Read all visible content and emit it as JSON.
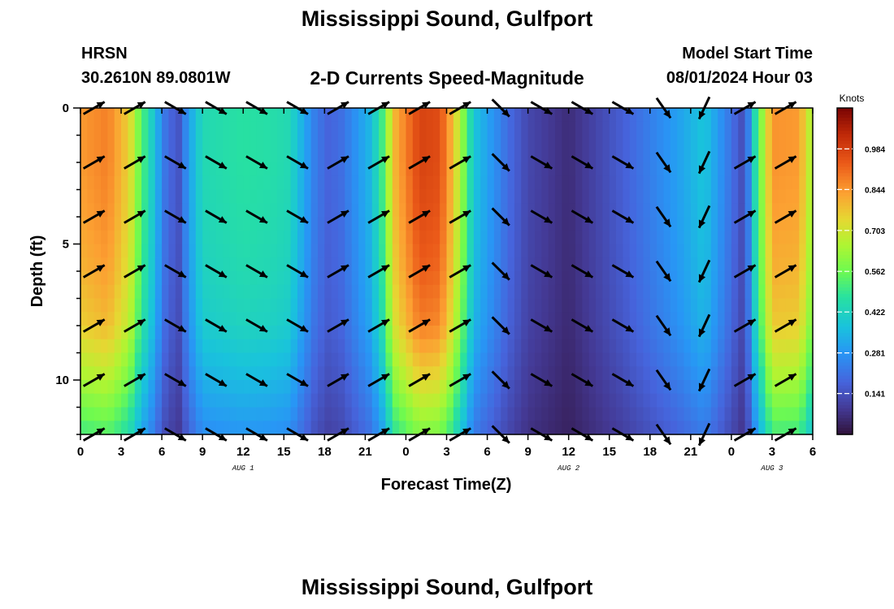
{
  "header": {
    "title": "Mississippi Sound, Gulfport",
    "station": "HRSN",
    "coordinates": "30.2610N  89.0801W",
    "subtitle": "2-D Currents Speed-Magnitude",
    "model_start_label": "Model Start Time",
    "model_start_value": "08/01/2024 Hour 03",
    "footer_title": "Mississippi Sound, Gulfport"
  },
  "chart_data": {
    "type": "heatmap",
    "title": "2-D Currents Speed-Magnitude",
    "xlabel": "Forecast Time(Z)",
    "ylabel": "Depth (ft)",
    "x_tick_labels": [
      "0",
      "3",
      "6",
      "9",
      "12",
      "15",
      "18",
      "21",
      "0",
      "3",
      "6",
      "9",
      "12",
      "15",
      "18",
      "21",
      "0",
      "3",
      "6"
    ],
    "x_date_labels": [
      {
        "label": "AUG 1",
        "hour_index": 12
      },
      {
        "label": "AUG 2",
        "hour_index": 36
      },
      {
        "label": "AUG 3",
        "hour_index": 51
      }
    ],
    "x_range_hours": [
      0,
      54
    ],
    "y_tick_labels": [
      "0",
      "5",
      "10"
    ],
    "y_ticks": [
      0,
      5,
      10
    ],
    "y_range": [
      0,
      12
    ],
    "y_reversed": true,
    "colorbar": {
      "label": "Knots",
      "ticks": [
        "0.984",
        "0.844",
        "0.703",
        "0.562",
        "0.422",
        "0.281",
        "0.141"
      ],
      "range": [
        0,
        1.125
      ]
    },
    "speed_profile_hours": [
      0,
      2,
      3.6,
      4.4,
      5.2,
      6.2,
      7.2,
      8,
      9,
      12,
      14,
      15.4,
      16.2,
      17.2,
      18.2,
      19.2,
      21.4,
      22.5,
      23,
      25,
      26.5,
      27.4,
      28.2,
      29,
      31.5,
      33,
      36,
      40,
      44,
      46,
      49,
      49.6,
      51,
      53,
      54
    ],
    "speed_profile_knots": [
      0.84,
      0.88,
      0.75,
      0.55,
      0.42,
      0.22,
      0.14,
      0.3,
      0.44,
      0.47,
      0.46,
      0.44,
      0.35,
      0.24,
      0.18,
      0.2,
      0.35,
      0.55,
      0.78,
      0.98,
      0.96,
      0.8,
      0.6,
      0.38,
      0.2,
      0.12,
      0.06,
      0.17,
      0.3,
      0.38,
      0.12,
      0.4,
      0.85,
      0.84,
      0.62
    ],
    "depth_factor_ft": [
      0,
      2,
      4,
      6,
      8,
      10,
      12
    ],
    "depth_factor": [
      1.0,
      1.0,
      0.98,
      0.95,
      0.9,
      0.76,
      0.6
    ],
    "vector_depths_ft": [
      0,
      2,
      4,
      6,
      8,
      10,
      12
    ],
    "vector_hours": [
      1,
      4,
      7,
      10,
      13,
      16,
      19,
      22,
      25,
      28,
      31,
      34,
      37,
      40,
      43,
      46,
      49,
      52
    ],
    "vector_directions_deg": [
      60,
      60,
      120,
      120,
      120,
      120,
      60,
      60,
      60,
      60,
      135,
      120,
      120,
      120,
      145,
      205,
      60,
      60
    ],
    "vector_direction_notes": "direction the current flows toward, degrees clockwise from north"
  }
}
